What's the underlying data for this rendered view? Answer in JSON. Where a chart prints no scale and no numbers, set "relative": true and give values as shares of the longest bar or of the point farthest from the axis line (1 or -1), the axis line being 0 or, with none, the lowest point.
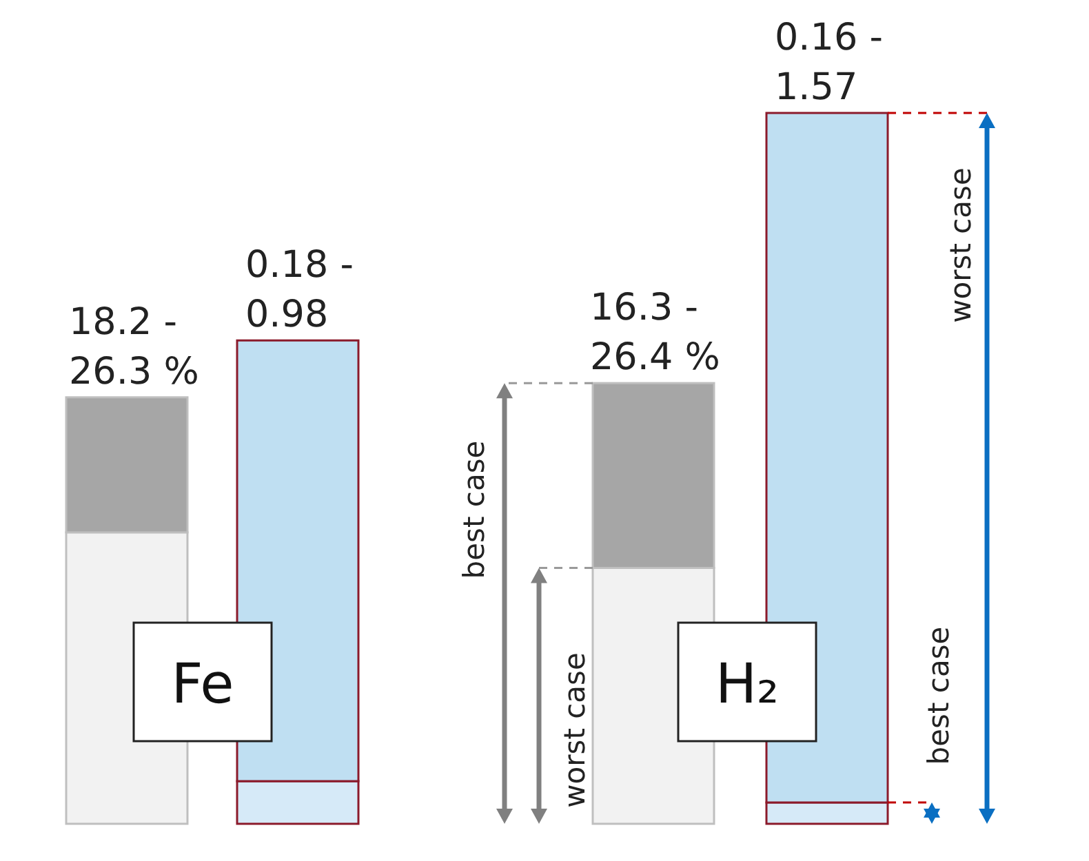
{
  "chart_data": {
    "type": "bar",
    "stacked": true,
    "relative": true,
    "categories": [
      null,
      null,
      null,
      null
    ],
    "series": [
      {
        "colors": [
          "#f2f2f2",
          "#d6eaf8",
          "#f2f2f2",
          "#d6eaf8"
        ],
        "values": [
          0.41,
          0.06,
          0.36,
          0.03
        ]
      },
      {
        "colors": [
          "#a6a6a6",
          "#bfdff2",
          "#a6a6a6",
          "#bfdff2"
        ],
        "values": [
          0.19,
          0.62,
          0.26,
          0.97
        ]
      }
    ],
    "annotations": [
      "best case",
      "worst case",
      "worst case",
      "best case",
      "Fe",
      "H₂",
      "18.2 - 26.3 %",
      "0.18 - 0.98",
      "16.3 - 26.4 %",
      "0.16 - 1.57"
    ]
  }
}
